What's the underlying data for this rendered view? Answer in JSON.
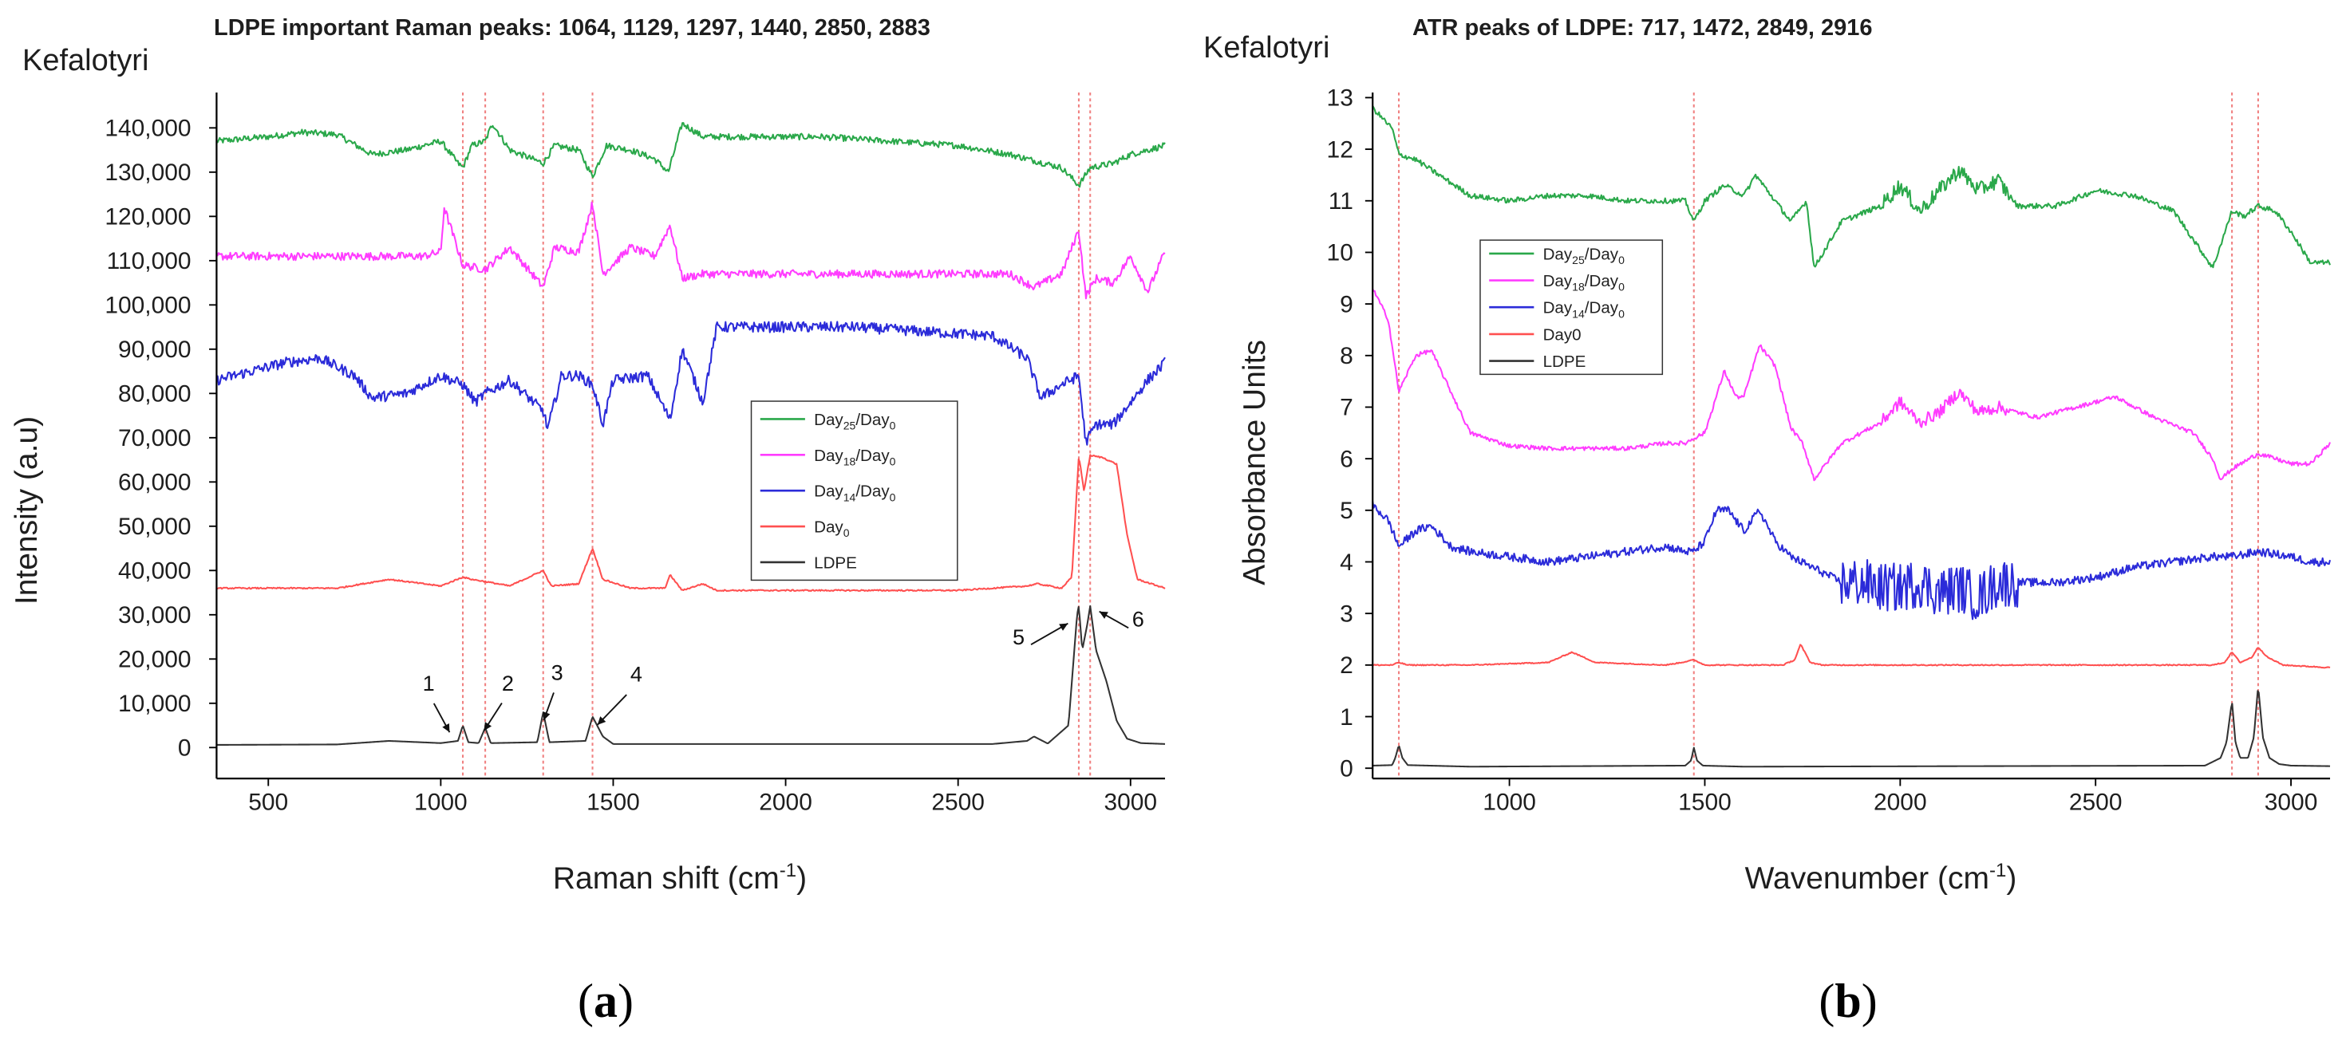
{
  "chart_data": [
    {
      "type": "line",
      "panel_label": "a",
      "sample": "Kefalotyri",
      "title": "LDPE important Raman  peaks: 1064, 1129, 1297, 1440, 2850, 2883",
      "xlabel": "Raman shift (cm",
      "xlabel_sup": "-1",
      "xlabel_close": ")",
      "ylabel": "Intensity (a.u)",
      "xlim": [
        350,
        3100
      ],
      "ylim": [
        -7000,
        148000
      ],
      "xticks": [
        500,
        1000,
        1500,
        2000,
        2500,
        3000
      ],
      "yticks": [
        0,
        10000,
        20000,
        30000,
        40000,
        50000,
        60000,
        70000,
        80000,
        90000,
        100000,
        110000,
        120000,
        130000,
        140000
      ],
      "ytick_labels": [
        "0",
        "10,000",
        "20,000",
        "30,000",
        "40,000",
        "50,000",
        "60,000",
        "70,000",
        "80,000",
        "90,000",
        "100,000",
        "110,000",
        "120,000",
        "130,000",
        "140,000"
      ],
      "reference_lines": [
        1064,
        1129,
        1297,
        1440,
        2850,
        2883
      ],
      "legend": [
        {
          "base": "Day",
          "sub": "25",
          "tail": "/Day",
          "tail_sub": "0",
          "color": "#2aa84a"
        },
        {
          "base": "Day",
          "sub": "18",
          "tail": "/Day",
          "tail_sub": "0",
          "color": "#ff3cff"
        },
        {
          "base": "Day",
          "sub": "14",
          "tail": "/Day",
          "tail_sub": "0",
          "color": "#2b2bd9"
        },
        {
          "base": "Day",
          "sub": "0",
          "tail": "",
          "tail_sub": "",
          "color": "#ff5050"
        },
        {
          "base": "LDPE",
          "sub": "",
          "tail": "",
          "tail_sub": "",
          "color": "#333333"
        }
      ],
      "annotations": [
        {
          "label": "1",
          "x": 1064,
          "y": 5000
        },
        {
          "label": "2",
          "x": 1129,
          "y": 4500
        },
        {
          "label": "3",
          "x": 1297,
          "y": 8000
        },
        {
          "label": "4",
          "x": 1440,
          "y": 7000
        },
        {
          "label": "5",
          "x": 2850,
          "y": 30000
        },
        {
          "label": "6",
          "x": 2883,
          "y": 30000
        }
      ],
      "series": [
        {
          "name": "Day25/Day0",
          "color": "#2aa84a",
          "noise": 700,
          "x": [
            350,
            500,
            600,
            700,
            800,
            900,
            1000,
            1050,
            1064,
            1090,
            1129,
            1150,
            1200,
            1297,
            1330,
            1400,
            1440,
            1480,
            1550,
            1620,
            1660,
            1700,
            1760,
            1900,
            2100,
            2300,
            2500,
            2650,
            2800,
            2850,
            2883,
            2950,
            3000,
            3100
          ],
          "y": [
            137000,
            138000,
            139000,
            138500,
            134000,
            135000,
            137000,
            132000,
            131000,
            136000,
            137000,
            141000,
            135000,
            132000,
            136000,
            135000,
            129000,
            136000,
            135000,
            133000,
            130000,
            141000,
            138000,
            138000,
            138000,
            137000,
            136000,
            134000,
            131000,
            127000,
            131000,
            132000,
            134000,
            136000
          ]
        },
        {
          "name": "Day18/Day0",
          "color": "#ff3cff",
          "noise": 900,
          "x": [
            350,
            500,
            700,
            850,
            950,
            1000,
            1010,
            1064,
            1129,
            1200,
            1297,
            1330,
            1400,
            1440,
            1470,
            1550,
            1620,
            1665,
            1700,
            1760,
            1900,
            2100,
            2300,
            2500,
            2650,
            2720,
            2800,
            2850,
            2870,
            2900,
            2950,
            3000,
            3050,
            3100
          ],
          "y": [
            111000,
            111000,
            111000,
            111000,
            111000,
            112000,
            122000,
            109000,
            108000,
            113000,
            104000,
            113000,
            112000,
            123000,
            107000,
            113000,
            111000,
            118000,
            106000,
            107000,
            107000,
            107000,
            107000,
            107000,
            107000,
            104000,
            107000,
            117000,
            102000,
            106000,
            105000,
            111000,
            103000,
            112000
          ]
        },
        {
          "name": "Day14/Day0",
          "color": "#2b2bd9",
          "noise": 1200,
          "x": [
            350,
            450,
            550,
            650,
            750,
            800,
            900,
            1000,
            1064,
            1100,
            1129,
            1200,
            1297,
            1310,
            1350,
            1400,
            1440,
            1470,
            1500,
            1600,
            1665,
            1700,
            1760,
            1800,
            2000,
            2200,
            2400,
            2600,
            2700,
            2740,
            2800,
            2850,
            2870,
            2900,
            2950,
            3000,
            3050,
            3100
          ],
          "y": [
            83000,
            85000,
            87000,
            88000,
            84000,
            79000,
            80000,
            84000,
            82000,
            78000,
            80000,
            83000,
            76000,
            72000,
            84000,
            84000,
            82000,
            73000,
            83000,
            84000,
            74000,
            90000,
            78000,
            95000,
            95000,
            95000,
            94000,
            93000,
            88000,
            79000,
            82000,
            84000,
            69000,
            73000,
            73000,
            78000,
            83000,
            87000
          ]
        },
        {
          "name": "Day0",
          "color": "#ff5050",
          "noise": 150,
          "x": [
            350,
            700,
            850,
            900,
            1000,
            1064,
            1090,
            1129,
            1200,
            1297,
            1320,
            1400,
            1440,
            1470,
            1550,
            1650,
            1665,
            1700,
            1760,
            1800,
            2500,
            2700,
            2730,
            2800,
            2830,
            2850,
            2865,
            2883,
            2920,
            2960,
            2990,
            3020,
            3100
          ],
          "y": [
            36000,
            36000,
            38000,
            37500,
            36500,
            38500,
            38000,
            37500,
            36500,
            40000,
            36500,
            37000,
            45000,
            38000,
            36000,
            36000,
            39000,
            35500,
            37000,
            35500,
            35500,
            36500,
            37000,
            36000,
            38500,
            66000,
            58000,
            66000,
            65500,
            64000,
            48000,
            38000,
            36000
          ]
        },
        {
          "name": "LDPE",
          "color": "#333333",
          "noise": 0,
          "x": [
            350,
            700,
            850,
            1000,
            1050,
            1064,
            1080,
            1110,
            1129,
            1145,
            1280,
            1297,
            1315,
            1420,
            1440,
            1470,
            1500,
            2600,
            2700,
            2720,
            2760,
            2820,
            2845,
            2850,
            2860,
            2875,
            2883,
            2900,
            2930,
            2960,
            2990,
            3030,
            3100
          ],
          "y": [
            600,
            700,
            1500,
            1000,
            1500,
            5000,
            1200,
            1000,
            4500,
            1000,
            1200,
            8000,
            1200,
            1500,
            7000,
            2500,
            800,
            800,
            1500,
            2500,
            900,
            5000,
            30000,
            32000,
            22000,
            28000,
            32000,
            22000,
            15000,
            6000,
            2000,
            1000,
            800
          ]
        }
      ]
    },
    {
      "type": "line",
      "panel_label": "b",
      "sample": "Kefalotyri",
      "title": "ATR peaks of LDPE: 717, 1472, 2849, 2916",
      "xlabel": "Wavenumber (cm",
      "xlabel_sup": "-1",
      "xlabel_close": ")",
      "ylabel": "Absorbance Units",
      "xlim": [
        650,
        3100
      ],
      "ylim": [
        -0.2,
        13.1
      ],
      "xticks": [
        1000,
        1500,
        2000,
        2500,
        3000
      ],
      "yticks": [
        0,
        1,
        2,
        3,
        4,
        5,
        6,
        7,
        8,
        9,
        10,
        11,
        12,
        13
      ],
      "ytick_labels": [
        "0",
        "1",
        "2",
        "3",
        "4",
        "5",
        "6",
        "7",
        "8",
        "9",
        "10",
        "11",
        "12",
        "13"
      ],
      "reference_lines": [
        717,
        1472,
        2849,
        2916
      ],
      "legend": [
        {
          "base": "Day",
          "sub": "25",
          "tail": "/Day",
          "tail_sub": "0",
          "color": "#2aa84a"
        },
        {
          "base": "Day",
          "sub": "18",
          "tail": "/Day",
          "tail_sub": "0",
          "color": "#ff3cff"
        },
        {
          "base": "Day",
          "sub": "14",
          "tail": "/Day",
          "tail_sub": "0",
          "color": "#2b2bd9"
        },
        {
          "base": "Day0",
          "sub": "",
          "tail": "",
          "tail_sub": "",
          "color": "#ff5050"
        },
        {
          "base": "LDPE",
          "sub": "",
          "tail": "",
          "tail_sub": "",
          "color": "#333333"
        }
      ],
      "annotations": [],
      "series": [
        {
          "name": "Day25/Day0",
          "color": "#2aa84a",
          "noise": 0.05,
          "x": [
            650,
            700,
            717,
            760,
            800,
            900,
            1000,
            1100,
            1200,
            1300,
            1400,
            1450,
            1472,
            1500,
            1550,
            1600,
            1630,
            1680,
            1720,
            1760,
            1780,
            1850,
            1950,
            2000,
            2050,
            2100,
            2150,
            2200,
            2250,
            2300,
            2400,
            2500,
            2600,
            2700,
            2800,
            2849,
            2880,
            2916,
            2960,
            3000,
            3050,
            3100
          ],
          "y": [
            12.8,
            12.4,
            11.9,
            11.8,
            11.6,
            11.1,
            11.0,
            11.1,
            11.1,
            11.0,
            11.0,
            11.0,
            10.6,
            11.0,
            11.3,
            11.1,
            11.5,
            11.0,
            10.6,
            11.0,
            9.7,
            10.6,
            10.9,
            11.3,
            10.8,
            11.2,
            11.6,
            11.2,
            11.4,
            10.9,
            10.9,
            11.2,
            11.1,
            10.8,
            9.7,
            10.8,
            10.7,
            10.9,
            10.8,
            10.4,
            9.8,
            9.8
          ]
        },
        {
          "name": "Day18/Day0",
          "color": "#ff3cff",
          "noise": 0.04,
          "x": [
            650,
            690,
            717,
            760,
            800,
            850,
            900,
            1000,
            1100,
            1200,
            1300,
            1400,
            1450,
            1472,
            1500,
            1550,
            1580,
            1600,
            1640,
            1680,
            1720,
            1750,
            1780,
            1850,
            1950,
            2000,
            2050,
            2100,
            2150,
            2200,
            2250,
            2350,
            2450,
            2550,
            2650,
            2750,
            2800,
            2820,
            2849,
            2916,
            2960,
            3000,
            3050,
            3100
          ],
          "y": [
            9.3,
            8.7,
            7.3,
            8.0,
            8.1,
            7.3,
            6.5,
            6.25,
            6.2,
            6.2,
            6.2,
            6.3,
            6.3,
            6.4,
            6.5,
            7.7,
            7.2,
            7.2,
            8.2,
            7.8,
            6.6,
            6.3,
            5.6,
            6.3,
            6.7,
            7.1,
            6.7,
            6.9,
            7.3,
            6.9,
            7.0,
            6.8,
            7.0,
            7.2,
            6.8,
            6.5,
            6.0,
            5.6,
            5.8,
            6.1,
            6.0,
            5.9,
            5.9,
            6.3
          ]
        },
        {
          "name": "Day14/Day0",
          "color": "#2b2bd9",
          "noise": 0.08,
          "x": [
            650,
            690,
            717,
            760,
            800,
            850,
            900,
            1000,
            1100,
            1200,
            1300,
            1400,
            1450,
            1472,
            1500,
            1530,
            1560,
            1600,
            1640,
            1680,
            1720,
            1800,
            1850,
            1900,
            1950,
            2000,
            2050,
            2100,
            2150,
            2200,
            2250,
            2300,
            2400,
            2500,
            2600,
            2700,
            2800,
            2849,
            2916,
            2960,
            3000,
            3050,
            3100
          ],
          "y": [
            5.1,
            4.8,
            4.3,
            4.6,
            4.7,
            4.3,
            4.2,
            4.1,
            4.0,
            4.1,
            4.2,
            4.3,
            4.2,
            4.2,
            4.4,
            5.0,
            5.0,
            4.6,
            5.0,
            4.4,
            4.1,
            3.8,
            3.6,
            3.6,
            3.5,
            3.5,
            3.6,
            3.4,
            3.5,
            3.3,
            3.6,
            3.6,
            3.6,
            3.7,
            3.9,
            4.0,
            4.1,
            4.1,
            4.2,
            4.15,
            4.1,
            4.0,
            4.0
          ]
        },
        {
          "name": "Day0",
          "color": "#ff5050",
          "noise": 0.01,
          "x": [
            650,
            700,
            717,
            740,
            900,
            1100,
            1160,
            1220,
            1400,
            1440,
            1472,
            1500,
            1700,
            1730,
            1745,
            1770,
            1800,
            2800,
            2830,
            2849,
            2870,
            2900,
            2916,
            2940,
            2980,
            3100
          ],
          "y": [
            2.0,
            2.0,
            2.05,
            2.0,
            2.0,
            2.05,
            2.25,
            2.05,
            2.0,
            2.05,
            2.1,
            2.0,
            2.0,
            2.1,
            2.4,
            2.05,
            2.0,
            2.0,
            2.05,
            2.25,
            2.05,
            2.15,
            2.35,
            2.15,
            2.0,
            1.95
          ]
        },
        {
          "name": "LDPE",
          "color": "#333333",
          "noise": 0,
          "x": [
            650,
            700,
            708,
            717,
            726,
            740,
            900,
            1450,
            1465,
            1472,
            1480,
            1495,
            1600,
            2780,
            2820,
            2835,
            2849,
            2858,
            2870,
            2890,
            2905,
            2916,
            2928,
            2945,
            2970,
            3000,
            3100
          ],
          "y": [
            0.05,
            0.06,
            0.2,
            0.45,
            0.2,
            0.06,
            0.03,
            0.05,
            0.15,
            0.4,
            0.15,
            0.05,
            0.03,
            0.05,
            0.2,
            0.5,
            1.3,
            0.5,
            0.2,
            0.2,
            0.6,
            1.6,
            0.6,
            0.2,
            0.08,
            0.05,
            0.04
          ]
        }
      ]
    }
  ]
}
